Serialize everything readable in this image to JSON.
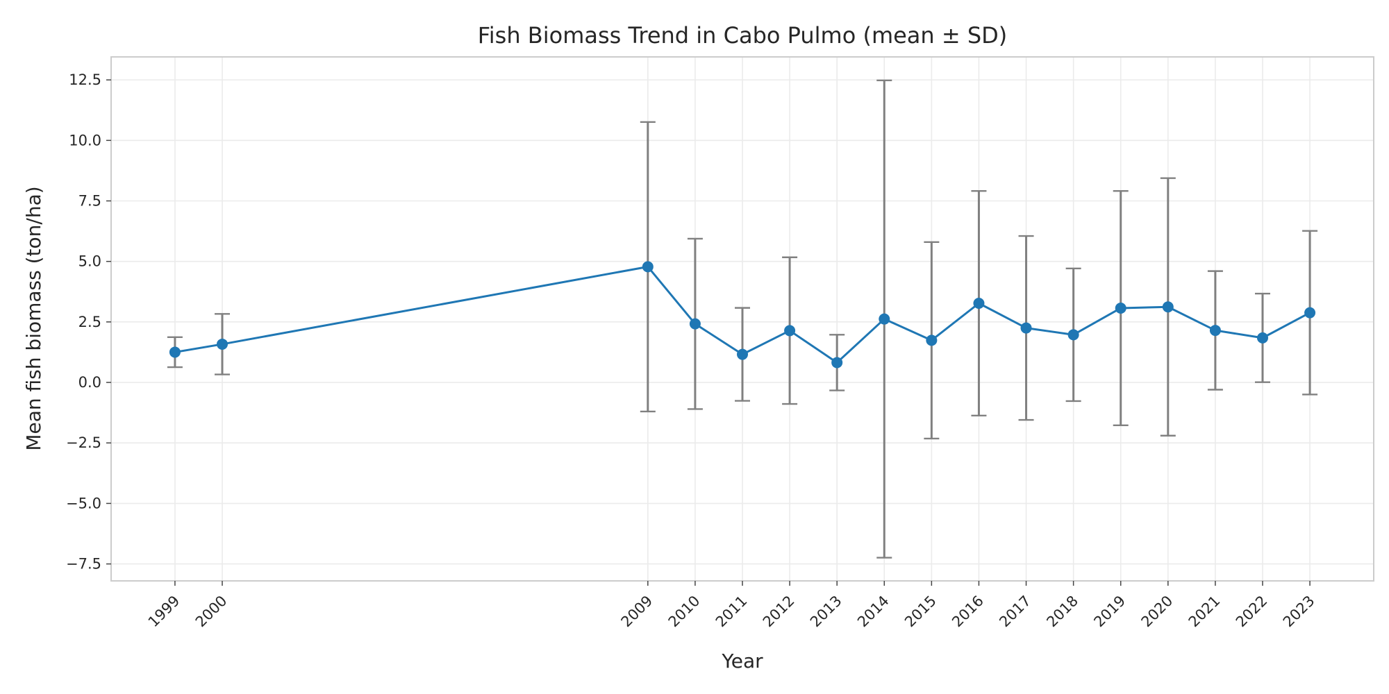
{
  "chart_data": {
    "type": "line",
    "title": "Fish Biomass Trend in Cabo Pulmo (mean ± SD)",
    "xlabel": "Year",
    "ylabel": "Mean fish biomass (ton/ha)",
    "x": [
      1999,
      2000,
      2009,
      2010,
      2011,
      2012,
      2013,
      2014,
      2015,
      2016,
      2017,
      2018,
      2019,
      2020,
      2021,
      2022,
      2023
    ],
    "x_tick_labels": [
      "1999",
      "2000",
      "2009",
      "2010",
      "2011",
      "2012",
      "2013",
      "2014",
      "2015",
      "2016",
      "2017",
      "2018",
      "2019",
      "2020",
      "2021",
      "2022",
      "2023"
    ],
    "series": [
      {
        "values": [
          1.25,
          1.58,
          4.78,
          2.42,
          1.16,
          2.14,
          0.82,
          2.62,
          1.74,
          3.27,
          2.25,
          1.97,
          3.07,
          3.12,
          2.15,
          1.84,
          2.88
        ],
        "sd": [
          0.62,
          1.25,
          5.98,
          3.52,
          1.92,
          3.03,
          1.15,
          9.86,
          4.06,
          4.64,
          3.8,
          2.74,
          4.84,
          5.32,
          2.45,
          1.83,
          3.38
        ],
        "color": "#1f77b4"
      }
    ],
    "error_bar_color": "#808080",
    "xlim": [
      1997.65,
      2024.35
    ],
    "ylim": [
      -8.2,
      13.45
    ],
    "y_ticks": [
      -7.5,
      -5.0,
      -2.5,
      0.0,
      2.5,
      5.0,
      7.5,
      10.0,
      12.5
    ],
    "y_tick_labels": [
      "−7.5",
      "−5.0",
      "−2.5",
      "0.0",
      "2.5",
      "5.0",
      "7.5",
      "10.0",
      "12.5"
    ],
    "grid": true
  }
}
